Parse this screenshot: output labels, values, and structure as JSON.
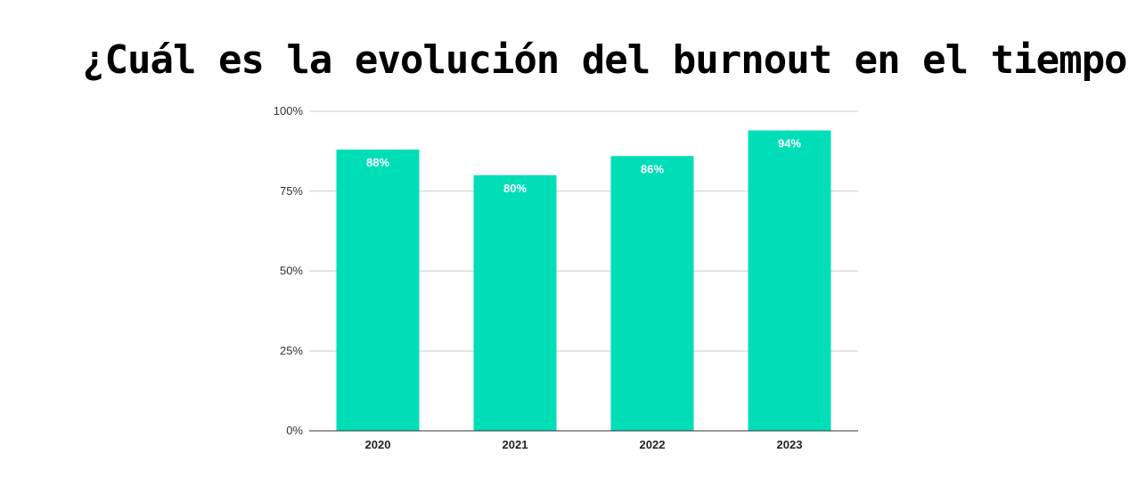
{
  "title": "¿Cuál es la evolución del burnout en el tiempo?",
  "colors": {
    "bar": "#00DEB8",
    "grid": "#cccccc",
    "axis": "#333333"
  },
  "chart_data": {
    "type": "bar",
    "title": "",
    "xlabel": "",
    "ylabel": "",
    "categories": [
      "2020",
      "2021",
      "2022",
      "2023"
    ],
    "values": [
      88,
      80,
      86,
      94
    ],
    "data_labels": [
      "88%",
      "80%",
      "86%",
      "94%"
    ],
    "ylim": [
      0,
      100
    ],
    "yticks": [
      0,
      25,
      50,
      75,
      100
    ],
    "ytick_labels": [
      "0%",
      "25%",
      "50%",
      "75%",
      "100%"
    ],
    "grid": true,
    "legend": "none"
  }
}
